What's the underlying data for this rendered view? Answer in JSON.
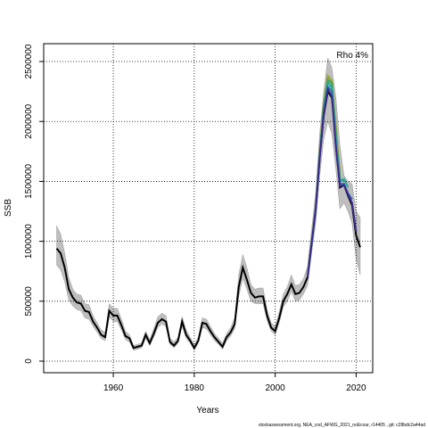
{
  "chart_data": {
    "type": "line",
    "xlabel": "Years",
    "ylabel": "SSB",
    "annotation": "Rho 4%",
    "footer": "stockassessment.org, NEA_cod_AFWG_2021_noEcour, r14405 , git: c28bdc2a44ad",
    "xlim": [
      1942.8,
      2024.1
    ],
    "ylim": [
      -96700,
      2649000
    ],
    "xticks": [
      1960,
      1980,
      2000,
      2020
    ],
    "yticks": [
      0,
      500000,
      1000000,
      1500000,
      2000000,
      2500000
    ],
    "grid": true,
    "x": [
      1946,
      1947,
      1948,
      1949,
      1950,
      1951,
      1952,
      1953,
      1954,
      1955,
      1956,
      1957,
      1958,
      1959,
      1960,
      1961,
      1962,
      1963,
      1964,
      1965,
      1966,
      1967,
      1968,
      1969,
      1970,
      1971,
      1972,
      1973,
      1974,
      1975,
      1976,
      1977,
      1978,
      1979,
      1980,
      1981,
      1982,
      1983,
      1984,
      1985,
      1986,
      1987,
      1988,
      1989,
      1990,
      1991,
      1992,
      1993,
      1994,
      1995,
      1996,
      1997,
      1998,
      1999,
      2000,
      2001,
      2002,
      2003,
      2004,
      2005,
      2006,
      2007,
      2008,
      2009,
      2010,
      2011,
      2012,
      2013,
      2014,
      2015,
      2016,
      2017,
      2018,
      2019,
      2020,
      2021
    ],
    "band": {
      "color": "#bebebe",
      "upper": [
        1130000,
        1060000,
        900000,
        700000,
        600000,
        560000,
        550000,
        480000,
        470000,
        380000,
        320000,
        260000,
        240000,
        480000,
        440000,
        440000,
        350000,
        250000,
        220000,
        130000,
        140000,
        150000,
        250000,
        180000,
        270000,
        370000,
        400000,
        380000,
        190000,
        160000,
        200000,
        370000,
        260000,
        200000,
        140000,
        200000,
        360000,
        350000,
        290000,
        230000,
        190000,
        150000,
        230000,
        280000,
        360000,
        720000,
        890000,
        780000,
        640000,
        600000,
        610000,
        610000,
        430000,
        320000,
        290000,
        410000,
        560000,
        620000,
        720000,
        630000,
        640000,
        690000,
        790000,
        1100000,
        1400000,
        1900000,
        2250000,
        2530000,
        2450000,
        2200000,
        1800000,
        1550000,
        1500000,
        1480000,
        1250000,
        1200000
      ],
      "lower": [
        800000,
        760000,
        660000,
        510000,
        460000,
        430000,
        420000,
        360000,
        350000,
        290000,
        240000,
        190000,
        170000,
        370000,
        330000,
        330000,
        260000,
        180000,
        160000,
        90000,
        100000,
        110000,
        190000,
        130000,
        200000,
        280000,
        310000,
        290000,
        140000,
        110000,
        150000,
        290000,
        190000,
        150000,
        90000,
        150000,
        280000,
        270000,
        220000,
        170000,
        140000,
        100000,
        170000,
        210000,
        270000,
        540000,
        690000,
        600000,
        500000,
        480000,
        480000,
        480000,
        340000,
        250000,
        220000,
        320000,
        450000,
        500000,
        580000,
        500000,
        510000,
        560000,
        630000,
        900000,
        1150000,
        1550000,
        1850000,
        2000000,
        1900000,
        1600000,
        1270000,
        1320000,
        1250000,
        1150000,
        850000,
        720000
      ]
    },
    "series": [
      {
        "color": "#000000",
        "values": [
          940000,
          900000,
          780000,
          600000,
          530000,
          490000,
          480000,
          420000,
          410000,
          330000,
          280000,
          220000,
          200000,
          420000,
          380000,
          380000,
          300000,
          210000,
          190000,
          110000,
          120000,
          130000,
          220000,
          150000,
          230000,
          320000,
          350000,
          330000,
          160000,
          130000,
          170000,
          330000,
          220000,
          170000,
          110000,
          170000,
          320000,
          310000,
          250000,
          200000,
          160000,
          120000,
          200000,
          240000,
          310000,
          620000,
          780000,
          680000,
          570000,
          530000,
          540000,
          540000,
          380000,
          280000,
          250000,
          360000,
          500000,
          560000,
          640000,
          560000,
          570000,
          620000,
          700000,
          990000,
          1260000,
          1700000,
          2050000,
          2250000,
          2200000,
          1900000,
          1450000,
          1470000,
          1380000,
          1300000,
          1050000,
          950000
        ]
      },
      {
        "color": "#9aa52a",
        "x": [
          2008,
          2009,
          2010,
          2011,
          2012,
          2013,
          2014,
          2015,
          2016
        ],
        "values": [
          720000,
          1000000,
          1280000,
          1750000,
          2150000,
          2380000,
          2340000,
          1950000,
          1550000
        ]
      },
      {
        "color": "#3fa34d",
        "x": [
          2008,
          2009,
          2010,
          2011,
          2012,
          2013,
          2014,
          2015,
          2016,
          2017
        ],
        "values": [
          710000,
          990000,
          1270000,
          1730000,
          2120000,
          2350000,
          2320000,
          1900000,
          1520000,
          1500000
        ]
      },
      {
        "color": "#2aa8a0",
        "x": [
          2008,
          2009,
          2010,
          2011,
          2012,
          2013,
          2014,
          2015,
          2016,
          2017,
          2018
        ],
        "values": [
          705000,
          985000,
          1265000,
          1720000,
          2100000,
          2330000,
          2280000,
          1850000,
          1500000,
          1520000,
          1450000
        ]
      },
      {
        "color": "#2c6fb0",
        "x": [
          2008,
          2009,
          2010,
          2011,
          2012,
          2013,
          2014,
          2015,
          2016,
          2017,
          2018,
          2019
        ],
        "values": [
          702000,
          982000,
          1262000,
          1710000,
          2080000,
          2290000,
          2250000,
          1800000,
          1480000,
          1480000,
          1400000,
          1350000
        ]
      },
      {
        "color": "#3b2a8a",
        "x": [
          2008,
          2009,
          2010,
          2011,
          2012,
          2013,
          2014,
          2015,
          2016,
          2017,
          2018,
          2019,
          2020
        ],
        "values": [
          700000,
          980000,
          1260000,
          1700000,
          2060000,
          2270000,
          2210000,
          1780000,
          1460000,
          1470000,
          1390000,
          1320000,
          1080000
        ]
      }
    ]
  }
}
